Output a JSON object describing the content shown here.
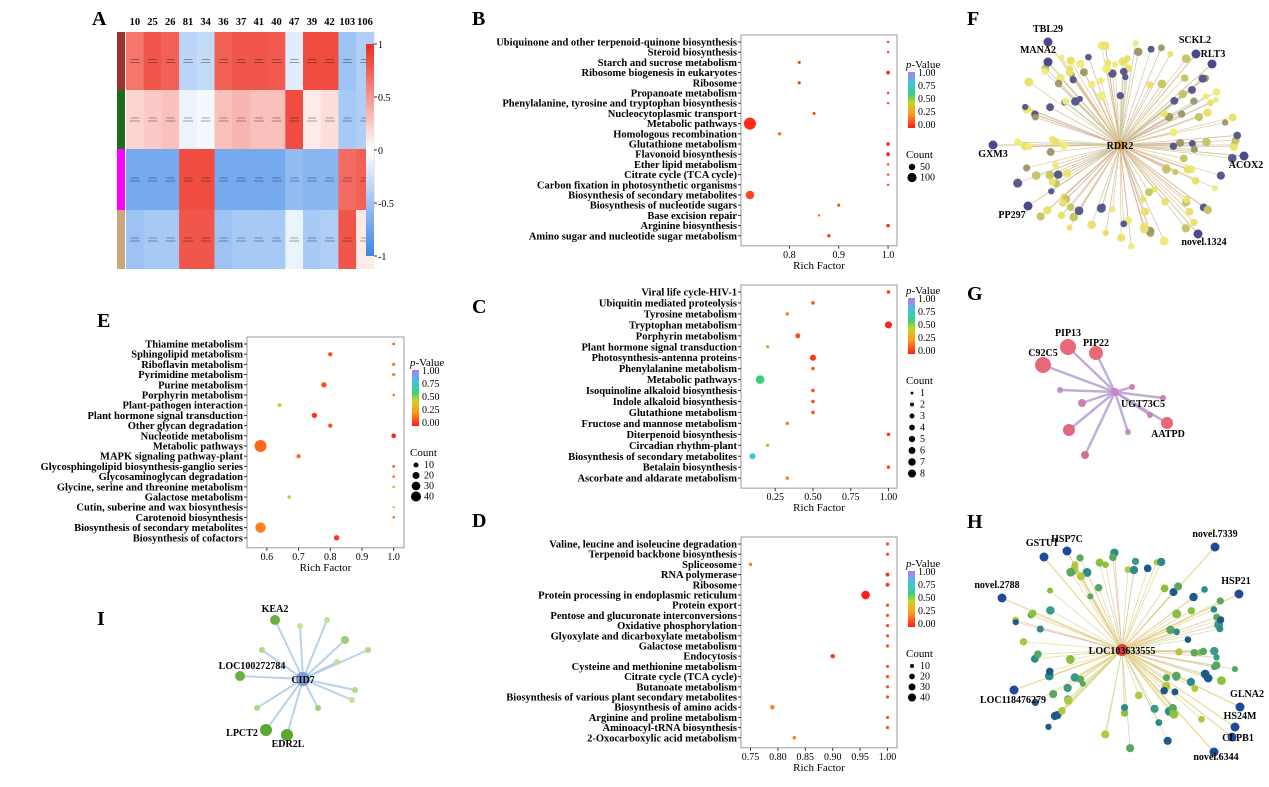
{
  "chart_data": [
    {
      "panel": "A",
      "type": "heatmap",
      "columns": [
        "10",
        "25",
        "26",
        "81",
        "34",
        "36",
        "37",
        "41",
        "40",
        "47",
        "39",
        "42",
        "103",
        "106"
      ],
      "row_group_colors": [
        "#a0322c",
        "#1e6b1e",
        "#ff00ff",
        "#c9a77c"
      ],
      "values": [
        [
          0.65,
          0.8,
          0.75,
          -0.35,
          -0.3,
          0.75,
          0.8,
          0.8,
          0.78,
          -0.15,
          0.85,
          0.85,
          -0.5,
          -0.4
        ],
        [
          0.2,
          0.25,
          0.3,
          -0.1,
          -0.05,
          0.3,
          0.35,
          0.3,
          0.3,
          0.85,
          0.1,
          0.15,
          -0.45,
          -0.4
        ],
        [
          -0.7,
          -0.7,
          -0.7,
          0.85,
          0.85,
          -0.7,
          -0.7,
          -0.7,
          -0.7,
          -0.55,
          -0.6,
          -0.6,
          0.7,
          0.75
        ],
        [
          -0.5,
          -0.45,
          -0.45,
          0.8,
          0.8,
          -0.5,
          -0.45,
          -0.45,
          -0.45,
          -0.1,
          -0.45,
          -0.4,
          0.8,
          0.1
        ]
      ],
      "colorbar_ticks": [
        "1",
        "0.5",
        "0",
        "-0.5",
        "-1"
      ],
      "colorbar_range": [
        -1,
        1
      ],
      "colors": {
        "low": "#3b86e8",
        "mid": "#ffffff",
        "high": "#ee2c1e"
      }
    },
    {
      "panel": "B",
      "type": "scatter",
      "terms": [
        "Ubiquinone and other terpenoid-quinone biosynthesis",
        "Steroid biosynthesis",
        "Starch and sucrose metabolism",
        "Ribosome biogenesis in eukaryotes",
        "Ribosome",
        "Propanoate metabolism",
        "Phenylalanine, tyrosine and tryptophan biosynthesis",
        "Nucleocytoplasmic transport",
        "Metabolic pathways",
        "Homologous recombination",
        "Glutathione metabolism",
        "Flavonoid biosynthesis",
        "Ether lipid metabolism",
        "Citrate cycle (TCA cycle)",
        "Carbon fixation in photosynthetic organisms",
        "Biosynthesis of secondary metabolites",
        "Biosynthesis of nucleotide sugars",
        "Base excision repair",
        "Arginine biosynthesis",
        "Amino sugar and nucleotide sugar metabolism"
      ],
      "rich_factor": [
        1.0,
        1.0,
        0.82,
        1.0,
        0.82,
        1.0,
        1.0,
        0.85,
        0.72,
        0.78,
        1.0,
        1.0,
        1.0,
        1.0,
        1.0,
        0.72,
        0.9,
        0.86,
        1.0,
        0.88
      ],
      "count": [
        3,
        3,
        8,
        12,
        8,
        3,
        3,
        8,
        120,
        10,
        12,
        12,
        3,
        3,
        3,
        60,
        8,
        5,
        10,
        10
      ],
      "p_value": [
        0.05,
        0.05,
        0.08,
        0.02,
        0.05,
        0.05,
        0.05,
        0.08,
        0.03,
        0.15,
        0.05,
        0.02,
        0.05,
        0.05,
        0.05,
        0.08,
        0.1,
        0.15,
        0.03,
        0.05
      ],
      "x_ticks": [
        "0.8",
        "0.9",
        "1.0"
      ],
      "xlim": [
        0.71,
        1.01
      ],
      "xlabel": "Rich Factor",
      "legend_title_p": "p-Value",
      "p_ticks": [
        "1.00",
        "0.75",
        "0.50",
        "0.25",
        "0.00"
      ],
      "legend_title_count": "Count",
      "count_legend": [
        "50",
        "100"
      ]
    },
    {
      "panel": "C",
      "type": "scatter",
      "terms": [
        "Viral life cycle-HIV-1",
        "Ubiquitin mediated proteolysis",
        "Tyrosine metabolism",
        "Tryptophan metabolism",
        "Porphyrin metabolism",
        "Plant hormone signal transduction",
        "Photosynthesis-antenna proteins",
        "Phenylalanine metabolism",
        "Metabolic pathways",
        "Isoquinoline alkaloid biosynthesis",
        "Indole alkaloid biosynthesis",
        "Glutathione metabolism",
        "Fructose and mannose metabolism",
        "Diterpenoid biosynthesis",
        "Circadian rhythm-plant",
        "Biosynthesis of secondary metabolites",
        "Betalain biosynthesis",
        "Ascorbate and aldarate metabolism"
      ],
      "rich_factor": [
        1.0,
        0.5,
        0.33,
        1.0,
        0.4,
        0.2,
        0.5,
        0.5,
        0.15,
        0.5,
        0.5,
        0.5,
        0.33,
        1.0,
        0.2,
        0.1,
        1.0,
        0.33
      ],
      "count": [
        1,
        1,
        1,
        4,
        2,
        1,
        3,
        1,
        6,
        1,
        1,
        1,
        1,
        1,
        1,
        3,
        1,
        1
      ],
      "p_value": [
        0.05,
        0.1,
        0.2,
        0.02,
        0.1,
        0.5,
        0.05,
        0.1,
        0.6,
        0.1,
        0.1,
        0.1,
        0.2,
        0.05,
        0.5,
        0.75,
        0.1,
        0.2
      ],
      "x_ticks": [
        "0.25",
        "0.50",
        "0.75",
        "1.00"
      ],
      "xlim": [
        0.05,
        1.03
      ],
      "xlabel": "Rich Factor",
      "legend_title_p": "p-Value",
      "p_ticks": [
        "1.00",
        "0.75",
        "0.50",
        "0.25",
        "0.00"
      ],
      "legend_title_count": "Count",
      "count_legend": [
        "1",
        "2",
        "3",
        "4",
        "5",
        "6",
        "7",
        "8"
      ]
    },
    {
      "panel": "D",
      "type": "scatter",
      "terms": [
        "Valine, leucine and isoleucine degradation",
        "Terpenoid backbone biosynthesis",
        "Spliceosome",
        "RNA polymerase",
        "Ribosome",
        "Protein processing in endoplasmic reticulum",
        "Protein export",
        "Pentose and glucuronate interconversions",
        "Oxidative phosphorylation",
        "Glyoxylate and dicarboxylate metabolism",
        "Galactose metabolism",
        "Endocytosis",
        "Cysteine and methionine metabolism",
        "Citrate cycle (TCA cycle)",
        "Butanoate metabolism",
        "Biosynthesis of various plant secondary metabolites",
        "Biosynthesis of amino acids",
        "Arginine and proline metabolism",
        "Aminoacyl-tRNA biosynthesis",
        "2-Oxocarboxylic acid metabolism"
      ],
      "rich_factor": [
        1.0,
        1.0,
        0.75,
        1.0,
        1.0,
        0.96,
        1.0,
        1.0,
        1.0,
        1.0,
        1.0,
        0.9,
        1.0,
        1.0,
        1.0,
        1.0,
        0.79,
        1.0,
        1.0,
        0.83
      ],
      "count": [
        4,
        4,
        5,
        6,
        6,
        30,
        4,
        4,
        4,
        4,
        4,
        8,
        4,
        4,
        4,
        4,
        8,
        4,
        4,
        5
      ],
      "p_value": [
        0.1,
        0.1,
        0.2,
        0.05,
        0.05,
        0.01,
        0.1,
        0.1,
        0.1,
        0.1,
        0.1,
        0.05,
        0.1,
        0.1,
        0.1,
        0.1,
        0.2,
        0.1,
        0.1,
        0.2
      ],
      "x_ticks": [
        "0.75",
        "0.80",
        "0.85",
        "0.90",
        "0.95",
        "1.00"
      ],
      "xlim": [
        0.74,
        1.01
      ],
      "xlabel": "Rich Factor",
      "legend_title_p": "p-Value",
      "p_ticks": [
        "1.00",
        "0.75",
        "0.50",
        "0.25",
        "0.00"
      ],
      "legend_title_count": "Count",
      "count_legend": [
        "10",
        "20",
        "30",
        "40"
      ]
    },
    {
      "panel": "E",
      "type": "scatter",
      "terms": [
        "Thiamine metabolism",
        "Sphingolipid metabolism",
        "Riboflavin metabolism",
        "Pyrimidine metabolism",
        "Purine metabolism",
        "Porphyrin metabolism",
        "Plant-pathogen interaction",
        "Plant hormone signal transduction",
        "Other glycan degradation",
        "Nucleotide metabolism",
        "Metabolic pathways",
        "MAPK signaling pathway-plant",
        "Glycosphingolipid biosynthesis-ganglio series",
        "Glycosaminoglycan degradation",
        "Glycine, serine and threonine metabolism",
        "Galactose metabolism",
        "Cutin, suberine and wax biosynthesis",
        "Carotenoid biosynthesis",
        "Biosynthesis of secondary metabolites",
        "Biosynthesis of cofactors"
      ],
      "rich_factor": [
        1.0,
        0.8,
        1.0,
        1.0,
        0.78,
        1.0,
        0.64,
        0.75,
        0.8,
        1.0,
        0.58,
        0.7,
        1.0,
        1.0,
        1.0,
        0.67,
        1.0,
        1.0,
        0.58,
        0.82
      ],
      "count": [
        2,
        5,
        3,
        3,
        8,
        2,
        4,
        8,
        5,
        6,
        40,
        5,
        2,
        2,
        2,
        3,
        1,
        2,
        30,
        8
      ],
      "p_value": [
        0.1,
        0.1,
        0.2,
        0.2,
        0.1,
        0.2,
        0.4,
        0.05,
        0.1,
        0.02,
        0.15,
        0.15,
        0.1,
        0.2,
        0.5,
        0.5,
        0.5,
        0.2,
        0.2,
        0.05
      ],
      "x_ticks": [
        "0.6",
        "0.7",
        "0.8",
        "0.9",
        "1.0"
      ],
      "xlim": [
        0.55,
        1.02
      ],
      "xlabel": "Rich Factor",
      "legend_title_p": "p-Value",
      "p_ticks": [
        "1.00",
        "0.75",
        "0.50",
        "0.25",
        "0.00"
      ],
      "legend_title_count": "Count",
      "count_legend": [
        "10",
        "20",
        "30",
        "40"
      ]
    }
  ],
  "networks": [
    {
      "panel": "F",
      "hub": "RDR2",
      "labels": [
        "TBL29",
        "MANA2",
        "SCKL2",
        "RLT3",
        "GXM3",
        "ACOX2",
        "PP297",
        "novel.1324"
      ]
    },
    {
      "panel": "G",
      "hub": "UGT73C5",
      "labels": [
        "PIP13",
        "PIP22",
        "C92C5",
        "AATPD"
      ]
    },
    {
      "panel": "H",
      "hub": "LOC103633555",
      "labels": [
        "HSP7C",
        "novel.7339",
        "GSTU1",
        "novel.2788",
        "HSP21",
        "LOC118476279",
        "GLNA2",
        "HS24M",
        "CLPB1",
        "novel.6344"
      ]
    },
    {
      "panel": "I",
      "hub": "CID7",
      "labels": [
        "KEA2",
        "LOC100272784",
        "LPCT2",
        "EDR2L"
      ]
    }
  ],
  "panel_letters": [
    "A",
    "B",
    "C",
    "D",
    "E",
    "F",
    "G",
    "H",
    "I"
  ]
}
